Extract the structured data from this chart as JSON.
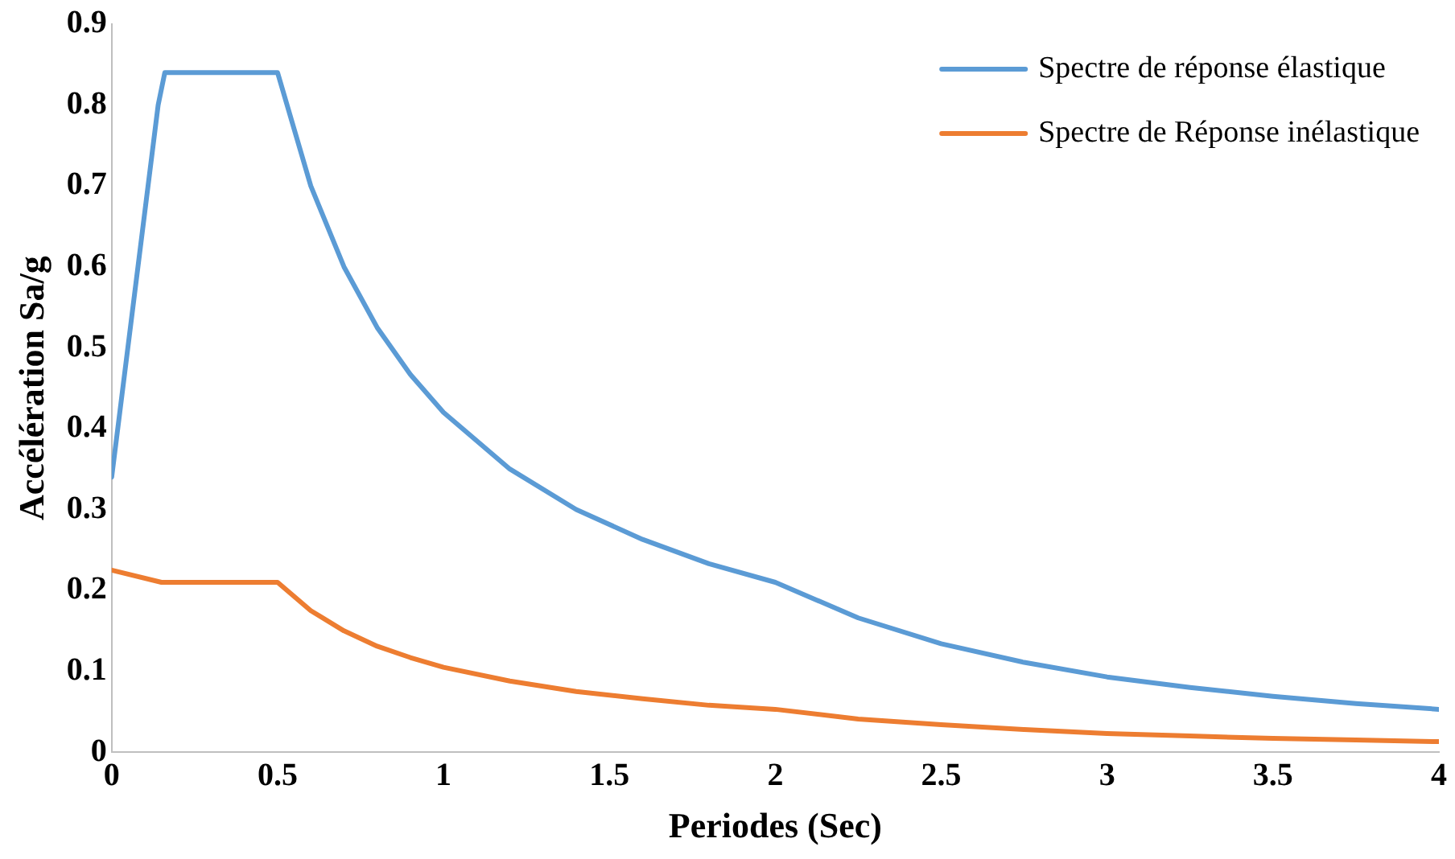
{
  "chart_data": {
    "type": "line",
    "xlabel": "Periodes (Sec)",
    "ylabel": "Accélération Sa/g",
    "xlim": [
      0,
      4
    ],
    "xticks": [
      0,
      0.5,
      1,
      1.5,
      2,
      2.5,
      3,
      3.5,
      4
    ],
    "ylim": [
      0,
      0.9
    ],
    "yticks": [
      0,
      0.1,
      0.2,
      0.3,
      0.4,
      0.5,
      0.6,
      0.7,
      0.8,
      0.9
    ],
    "grid": false,
    "legend": "top right",
    "marker": "none",
    "line_style": "solid",
    "series": [
      {
        "name": "Spectre de réponse élastique",
        "color": "#5b9bd5",
        "x": [
          0,
          0.14,
          0.16,
          0.5,
          0.6,
          0.7,
          0.8,
          0.9,
          1,
          1.2,
          1.4,
          1.6,
          1.8,
          2,
          2.25,
          2.5,
          2.75,
          3,
          3.25,
          3.5,
          3.75,
          4
        ],
        "values": [
          0.34,
          0.8,
          0.84,
          0.84,
          0.7,
          0.6,
          0.525,
          0.467,
          0.42,
          0.35,
          0.3,
          0.263,
          0.233,
          0.21,
          0.166,
          0.134,
          0.111,
          0.093,
          0.08,
          0.069,
          0.06,
          0.053
        ]
      },
      {
        "name": "Spectre de Réponse inélastique",
        "color": "#ed7d31",
        "x": [
          0,
          0.15,
          0.5,
          0.6,
          0.7,
          0.8,
          0.9,
          1,
          1.2,
          1.4,
          1.6,
          1.8,
          2,
          2.25,
          2.5,
          2.75,
          3,
          3.25,
          3.5,
          3.75,
          4
        ],
        "values": [
          0.225,
          0.21,
          0.21,
          0.175,
          0.15,
          0.131,
          0.117,
          0.105,
          0.088,
          0.075,
          0.066,
          0.058,
          0.053,
          0.041,
          0.034,
          0.028,
          0.023,
          0.02,
          0.017,
          0.015,
          0.013
        ]
      }
    ]
  }
}
